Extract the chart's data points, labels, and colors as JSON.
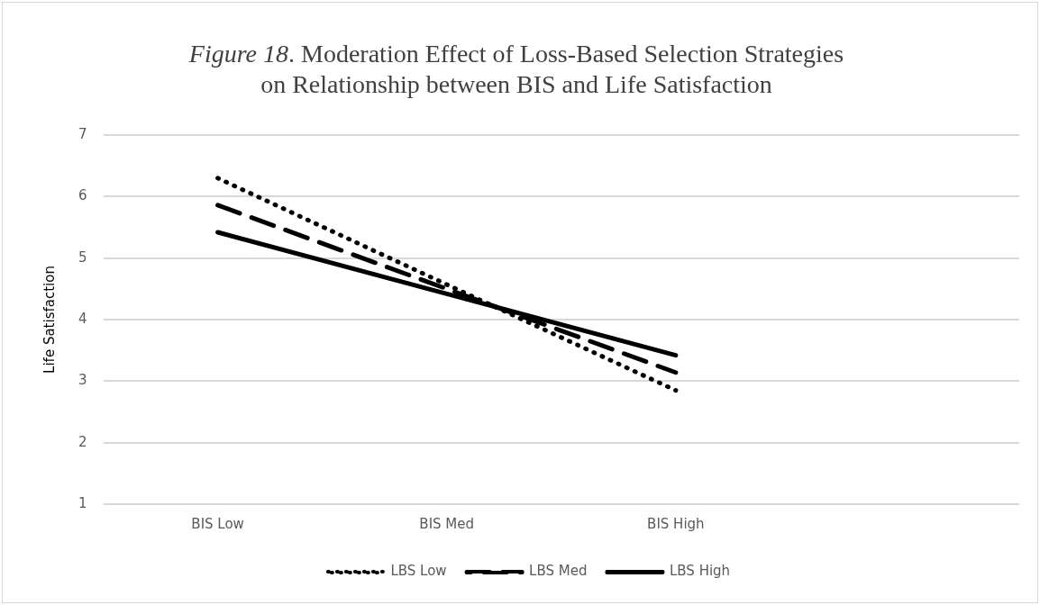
{
  "chart_data": {
    "type": "line",
    "title": "Figure 18. Moderation Effect of Loss-Based Selection Strategies on Relationship between BIS and Life Satisfaction",
    "ylabel": "Life Satisfaction",
    "categories": [
      "BIS Low",
      "BIS Med",
      "BIS High",
      null
    ],
    "series": [
      {
        "name": "LBS Low",
        "color": "#000000",
        "line_style": "dotted",
        "values": [
          6.3,
          4.57,
          2.85,
          null
        ]
      },
      {
        "name": "LBS Med",
        "color": "#000000",
        "line_style": "dashed",
        "values": [
          5.86,
          4.5,
          3.14,
          null
        ]
      },
      {
        "name": "LBS High",
        "color": "#000000",
        "line_style": "solid",
        "values": [
          5.42,
          4.42,
          3.42,
          null
        ]
      }
    ],
    "ylim": [
      1,
      7
    ],
    "yticks": [
      1,
      2,
      3,
      4,
      5,
      6,
      7
    ],
    "grid": "y",
    "legend": "bottom",
    "marker": "none"
  }
}
